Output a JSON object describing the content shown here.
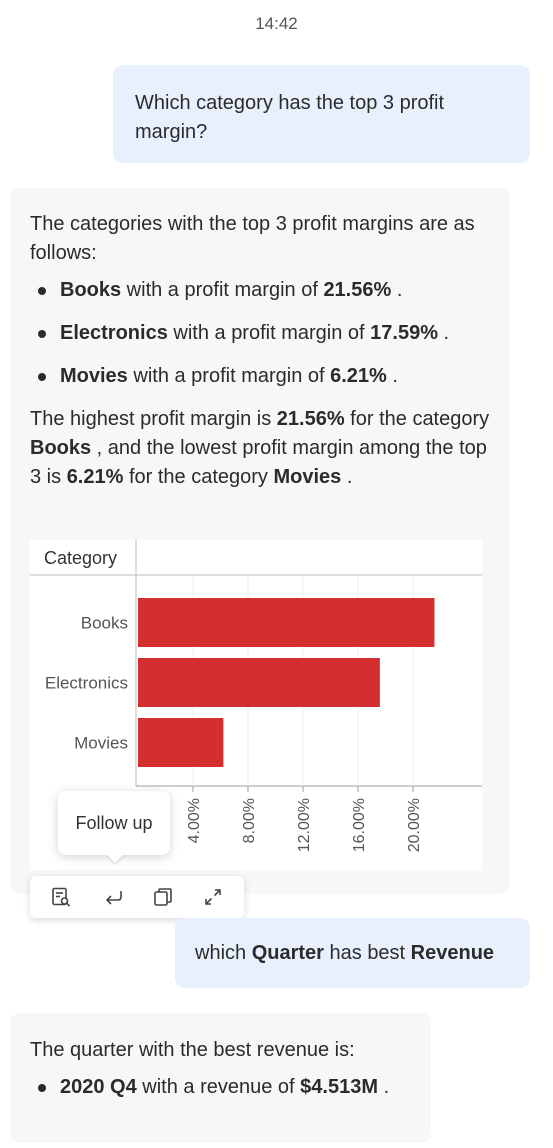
{
  "timestamp": "14:42",
  "messages": {
    "q1": "Which category has the top 3 profit margin?",
    "a1": {
      "intro": "The categories with the top 3 profit margins are as follows:",
      "items": [
        {
          "name": "Books",
          "mid": " with a profit margin of ",
          "value": "21.56%",
          "end": " ."
        },
        {
          "name": "Electronics",
          "mid": " with a profit margin of ",
          "value": "17.59%",
          "end": " ."
        },
        {
          "name": "Movies",
          "mid": " with a profit margin of ",
          "value": "6.21%",
          "end": " ."
        }
      ],
      "summary": {
        "p1": "The highest profit margin is ",
        "v1": "21.56%",
        "p2": " for the category ",
        "v2": "Books",
        "p3": " , and the lowest profit margin among the top 3 is ",
        "v3": "6.21%",
        "p4": " for the category ",
        "v4": "Movies",
        "p5": " ."
      }
    },
    "q2": {
      "pre": "which ",
      "b1": "Quarter",
      "mid": " has best ",
      "b2": "Revenue"
    },
    "a2": {
      "intro": "The quarter with the best revenue is:",
      "item": {
        "name": "2020 Q4",
        "mid": " with a revenue of ",
        "value": "$4.513M",
        "end": " ."
      }
    }
  },
  "tooltip": "Follow up",
  "toolbar": {
    "icons": [
      "inspect-query-icon",
      "follow-up-icon",
      "copy-icon",
      "expand-icon"
    ]
  },
  "chart_data": {
    "type": "bar",
    "orientation": "horizontal",
    "header": "Category",
    "categories": [
      "Books",
      "Electronics",
      "Movies"
    ],
    "values": [
      21.56,
      17.59,
      6.21
    ],
    "xticks": [
      "4.00%",
      "8.00%",
      "12.00%",
      "16.00%",
      "20.00%"
    ],
    "xtick_values": [
      4,
      8,
      12,
      16,
      20
    ],
    "xlim": [
      0,
      22
    ],
    "color": "#d32f2f",
    "grid": true
  }
}
